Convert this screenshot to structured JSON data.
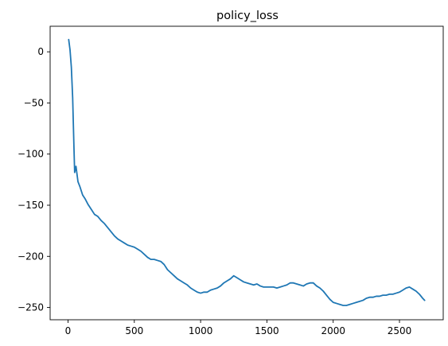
{
  "chart_data": {
    "type": "line",
    "title": "policy_loss",
    "xlabel": "",
    "ylabel": "",
    "xlim": [
      -135,
      2830
    ],
    "ylim": [
      -262,
      25
    ],
    "grid": false,
    "legend": "none",
    "xticks": [
      0,
      500,
      1000,
      1500,
      2000,
      2500
    ],
    "yticks": [
      0,
      -50,
      -100,
      -150,
      -200,
      -250
    ],
    "xtick_labels": [
      "0",
      "500",
      "1000",
      "1500",
      "2000",
      "2500"
    ],
    "ytick_labels": [
      "0",
      "−50",
      "−100",
      "−150",
      "−200",
      "−250"
    ],
    "series": [
      {
        "color": "#1f77b4",
        "x": [
          5,
          15,
          25,
          35,
          45,
          50,
          60,
          75,
          90,
          110,
          130,
          150,
          175,
          200,
          225,
          250,
          275,
          300,
          325,
          350,
          375,
          400,
          425,
          450,
          475,
          500,
          525,
          550,
          575,
          600,
          625,
          650,
          675,
          700,
          725,
          750,
          775,
          800,
          825,
          850,
          875,
          900,
          925,
          950,
          975,
          1000,
          1025,
          1050,
          1075,
          1100,
          1125,
          1150,
          1175,
          1200,
          1225,
          1250,
          1275,
          1300,
          1325,
          1350,
          1375,
          1400,
          1425,
          1450,
          1475,
          1500,
          1525,
          1550,
          1575,
          1600,
          1625,
          1650,
          1675,
          1700,
          1725,
          1750,
          1775,
          1800,
          1825,
          1850,
          1875,
          1900,
          1925,
          1950,
          1975,
          2000,
          2025,
          2050,
          2075,
          2100,
          2125,
          2150,
          2175,
          2200,
          2225,
          2250,
          2275,
          2300,
          2325,
          2350,
          2375,
          2400,
          2425,
          2450,
          2475,
          2500,
          2525,
          2550,
          2575,
          2600,
          2625,
          2650,
          2675,
          2690
        ],
        "values": [
          12,
          2,
          -15,
          -45,
          -95,
          -118,
          -112,
          -127,
          -132,
          -140,
          -144,
          -149,
          -154,
          -159,
          -161,
          -165,
          -168,
          -172,
          -176,
          -180,
          -183,
          -185,
          -187,
          -189,
          -190,
          -191,
          -193,
          -195,
          -198,
          -201,
          -203,
          -203,
          -204,
          -205,
          -208,
          -213,
          -216,
          -219,
          -222,
          -224,
          -226,
          -228,
          -231,
          -233,
          -235,
          -236,
          -235,
          -235,
          -233,
          -232,
          -231,
          -229,
          -226,
          -224,
          -222,
          -219,
          -221,
          -223,
          -225,
          -226,
          -227,
          -228,
          -227,
          -229,
          -230,
          -230,
          -230,
          -230,
          -231,
          -230,
          -229,
          -228,
          -226,
          -226,
          -227,
          -228,
          -229,
          -227,
          -226,
          -226,
          -229,
          -231,
          -234,
          -238,
          -242,
          -245,
          -246,
          -247,
          -248,
          -248,
          -247,
          -246,
          -245,
          -244,
          -243,
          -241,
          -240,
          -240,
          -239,
          -239,
          -238,
          -238,
          -237,
          -237,
          -236,
          -235,
          -233,
          -231,
          -230,
          -232,
          -234,
          -237,
          -241,
          -243
        ]
      }
    ]
  }
}
